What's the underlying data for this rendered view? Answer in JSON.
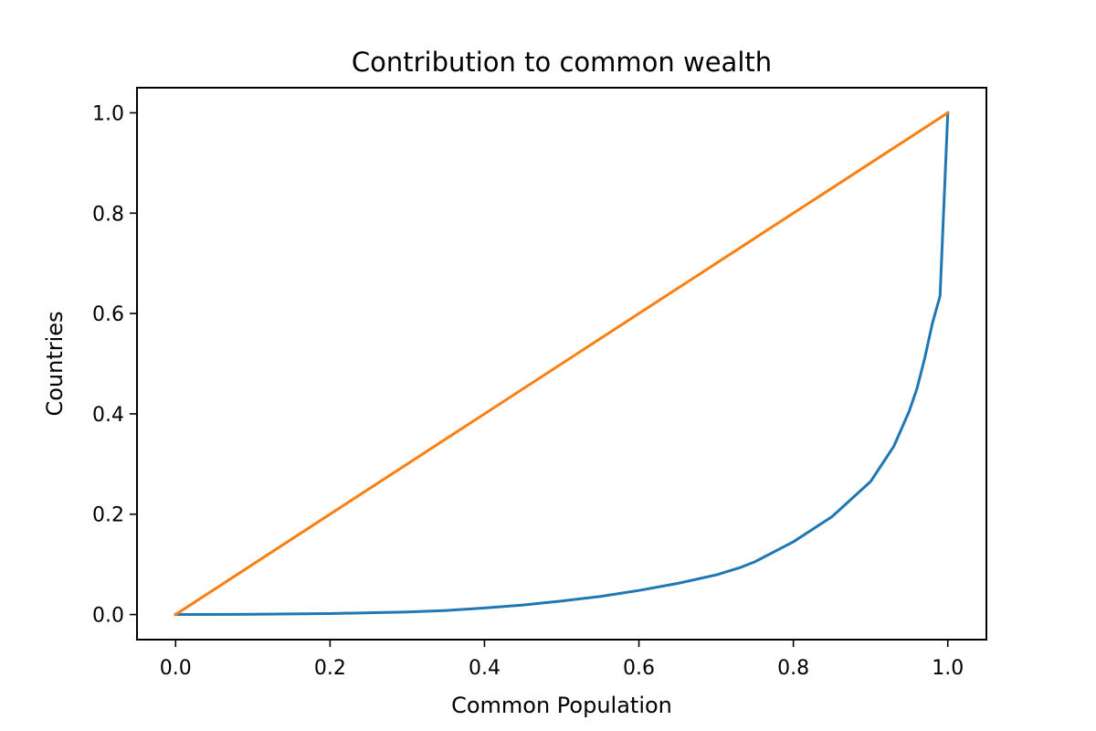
{
  "chart_data": {
    "type": "line",
    "title": "Contribution to common wealth",
    "xlabel": "Common Population",
    "ylabel": "Countries",
    "xlim": [
      -0.05,
      1.05
    ],
    "ylim": [
      -0.05,
      1.05
    ],
    "xticks": [
      "0.0",
      "0.2",
      "0.4",
      "0.6",
      "0.8",
      "1.0"
    ],
    "yticks": [
      "0.0",
      "0.2",
      "0.4",
      "0.6",
      "0.8",
      "1.0"
    ],
    "grid": false,
    "legend": false,
    "series": [
      {
        "color": "#1f77b4",
        "x": [
          0.0,
          0.1,
          0.2,
          0.3,
          0.35,
          0.4,
          0.45,
          0.5,
          0.55,
          0.6,
          0.65,
          0.7,
          0.73,
          0.75,
          0.8,
          0.85,
          0.9,
          0.93,
          0.95,
          0.96,
          0.97,
          0.98,
          0.99,
          1.0
        ],
        "y": [
          0.0,
          0.0005,
          0.002,
          0.005,
          0.008,
          0.013,
          0.019,
          0.027,
          0.036,
          0.048,
          0.062,
          0.079,
          0.093,
          0.105,
          0.145,
          0.195,
          0.265,
          0.335,
          0.405,
          0.45,
          0.51,
          0.58,
          0.635,
          1.0
        ]
      },
      {
        "color": "#ff7f0e",
        "x": [
          0.0,
          1.0
        ],
        "y": [
          0.0,
          1.0
        ]
      }
    ]
  }
}
